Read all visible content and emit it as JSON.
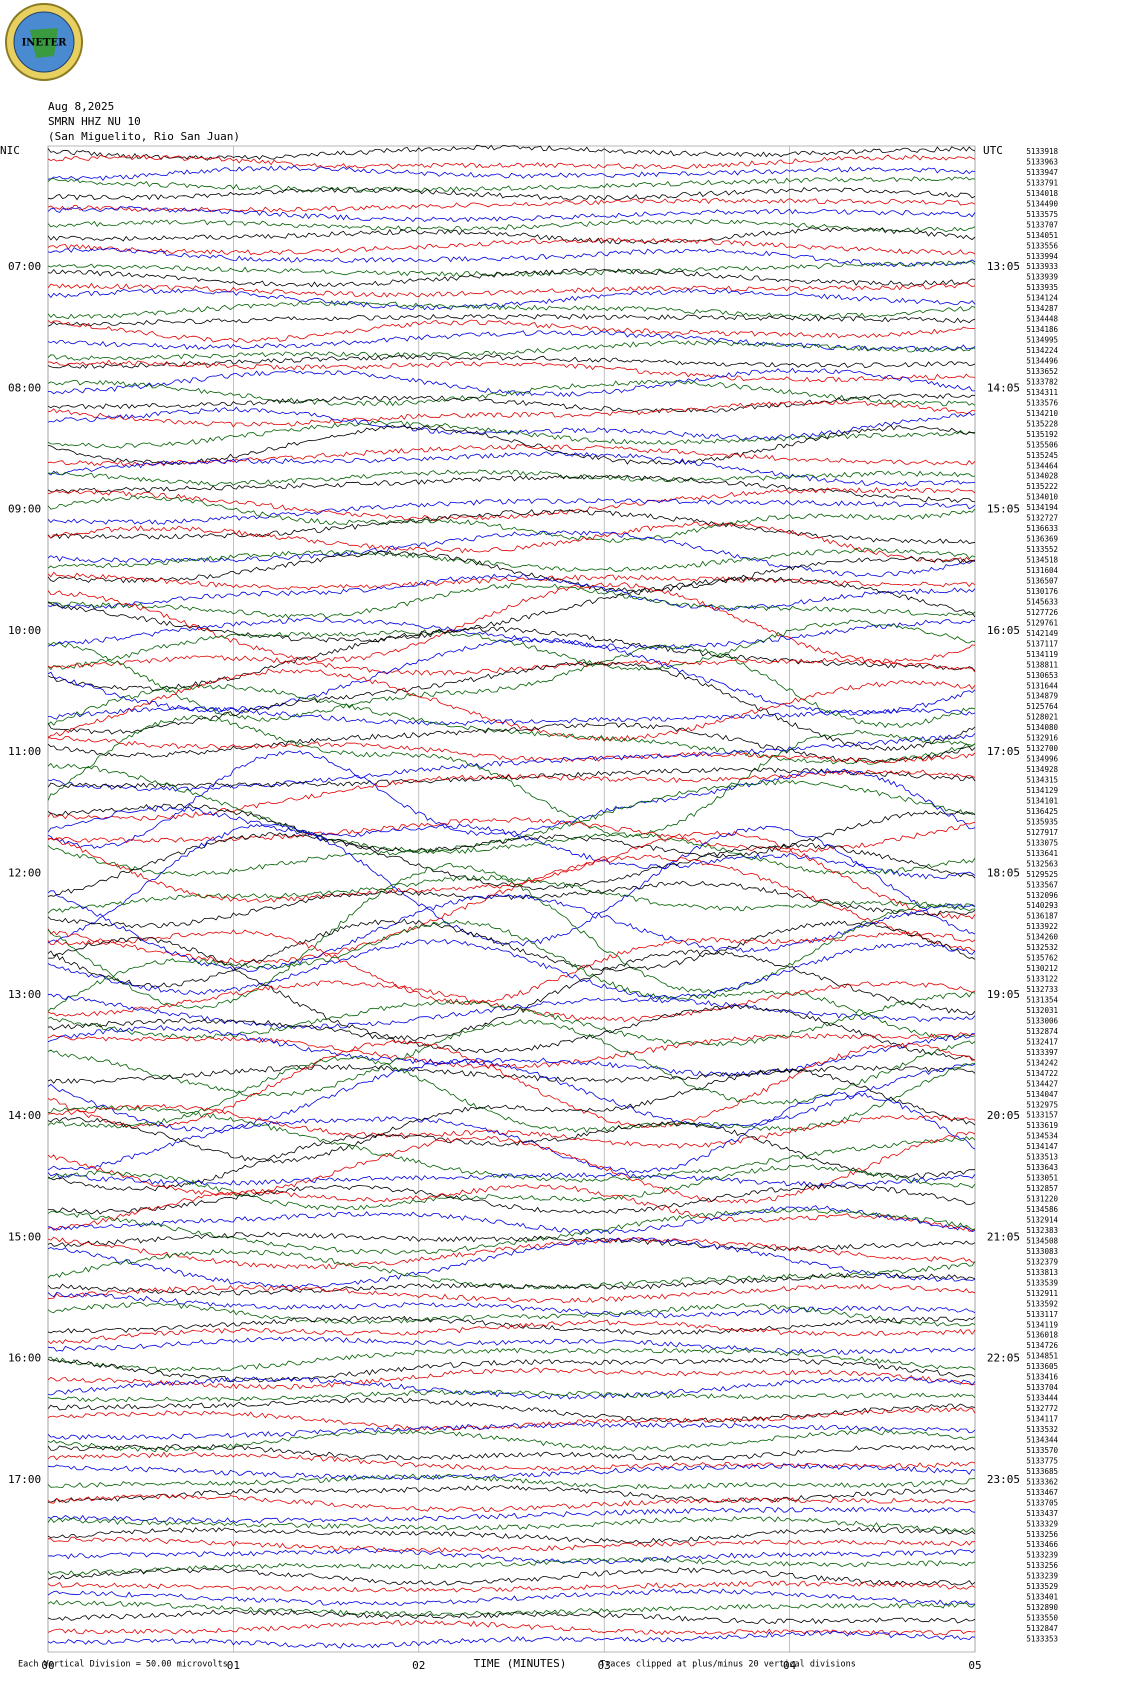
{
  "header": {
    "logo": "INETER",
    "date": "Aug 8,2025",
    "station": "SMRN HHZ NU 10",
    "location": "(San Miguelito, Rio San Juan)"
  },
  "left_label": "NIC",
  "right_label": "UTC",
  "left_times": [
    "07:00",
    "08:00",
    "09:00",
    "10:00",
    "11:00",
    "12:00",
    "13:00",
    "14:00",
    "15:00",
    "16:00",
    "17:00"
  ],
  "right_times": [
    "13:05",
    "14:05",
    "15:05",
    "16:05",
    "17:05",
    "18:05",
    "19:05",
    "20:05",
    "21:05",
    "22:05",
    "23:05"
  ],
  "x_axis": {
    "ticks": [
      "00",
      "01",
      "02",
      "03",
      "04",
      "05"
    ],
    "title": "TIME (MINUTES)"
  },
  "footer": {
    "scale": "Each Vertical Division =   50.00 microvolts",
    "clip": "Traces clipped at plus/minus 20 vertical divisions"
  },
  "trace_colors": [
    "#000000",
    "#e00000",
    "#0000e0",
    "#006000"
  ],
  "trace_ids": [
    "5133918",
    "5133963",
    "5133947",
    "5133791",
    "5134018",
    "5134490",
    "5133575",
    "5133707",
    "5134051",
    "5133556",
    "5133994",
    "5133933",
    "5133939",
    "5133935",
    "5134124",
    "5134287",
    "5134448",
    "5134186",
    "5134995",
    "5134224",
    "5134496",
    "5133652",
    "5133782",
    "5134311",
    "5133576",
    "5134210",
    "5135228",
    "5135192",
    "5135506",
    "5135245",
    "5134464",
    "5134028",
    "5135222",
    "5134010",
    "5134194",
    "5132727",
    "5136633",
    "5136369",
    "5133552",
    "5134518",
    "5131604",
    "5136507",
    "5130176",
    "5145633",
    "5127726",
    "5129761",
    "5142149",
    "5137117",
    "5134119",
    "5138811",
    "5130653",
    "5131644",
    "5134879",
    "5125764",
    "5128021",
    "5134080",
    "5132916",
    "5132700",
    "5134996",
    "5134928",
    "5134315",
    "5134129",
    "5134101",
    "5136425",
    "5135935",
    "5127917",
    "5133075",
    "5133641",
    "5132563",
    "5129525",
    "5133567",
    "5132096",
    "5140293",
    "5136187",
    "5133922",
    "5134260",
    "5132532",
    "5135762",
    "5130212",
    "5133122",
    "5132733",
    "5131354",
    "5132031",
    "5133006",
    "5132874",
    "5132417",
    "5133397",
    "5134242",
    "5134722",
    "5134427",
    "5134047",
    "5132975",
    "5133157",
    "5133619",
    "5134534",
    "5134147",
    "5133513",
    "5133643",
    "5133051",
    "5132857",
    "5131220",
    "5134586",
    "5132914",
    "5132383",
    "5134508",
    "5133083",
    "5132379",
    "5133813",
    "5133539",
    "5132911",
    "5133592",
    "5133117",
    "5134119",
    "5136018",
    "5134726",
    "5134851",
    "5133605",
    "5133416",
    "5133704",
    "5133444",
    "5132772",
    "5134117",
    "5133532",
    "5134344",
    "5133570",
    "5133775",
    "5133685",
    "5133362",
    "5133467",
    "5133705",
    "5133437",
    "5133329",
    "5133256",
    "5133466",
    "5133239",
    "5133256",
    "5133239",
    "5133529",
    "5133401",
    "5132890",
    "5133550",
    "5132847",
    "5133353"
  ]
}
